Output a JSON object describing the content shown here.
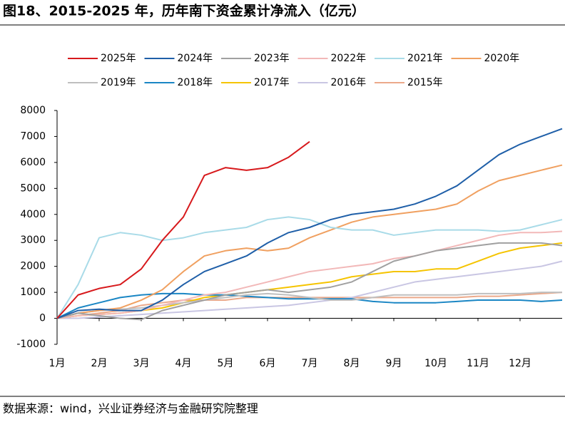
{
  "chart_data": {
    "type": "line",
    "title": "图18、2015-2025 年，历年南下资金累计净流入（亿元）",
    "source": "数据来源：wind，兴业证券经济与金融研究院整理",
    "x": [
      1,
      1.5,
      2,
      2.5,
      3,
      3.5,
      4,
      4.5,
      5,
      5.5,
      6,
      6.5,
      7,
      7.5,
      8,
      8.5,
      9,
      9.5,
      10,
      10.5,
      11,
      11.5,
      12,
      12.5,
      13
    ],
    "xlim": [
      1,
      13
    ],
    "xticks": [
      {
        "value": 1,
        "label": "1月"
      },
      {
        "value": 2,
        "label": "2月"
      },
      {
        "value": 3,
        "label": "3月"
      },
      {
        "value": 4,
        "label": "4月"
      },
      {
        "value": 5,
        "label": "5月"
      },
      {
        "value": 6,
        "label": "6月"
      },
      {
        "value": 7,
        "label": "7月"
      },
      {
        "value": 8,
        "label": "8月"
      },
      {
        "value": 9,
        "label": "9月"
      },
      {
        "value": 10,
        "label": "10月"
      },
      {
        "value": 11,
        "label": "11月"
      },
      {
        "value": 12,
        "label": "12月"
      }
    ],
    "ylim": [
      -1000,
      8000
    ],
    "yticks": [
      -1000,
      0,
      1000,
      2000,
      3000,
      4000,
      5000,
      6000,
      7000,
      8000
    ],
    "series": [
      {
        "name": "2025年",
        "color": "#d7191c",
        "values": [
          0,
          900,
          1150,
          1300,
          1900,
          3000,
          3900,
          5500,
          5800,
          5700,
          5800,
          6200,
          6800,
          null,
          null,
          null,
          null,
          null,
          null,
          null,
          null,
          null,
          null,
          null,
          null
        ]
      },
      {
        "name": "2024年",
        "color": "#1f5fa8",
        "values": [
          0,
          300,
          350,
          300,
          300,
          700,
          1300,
          1800,
          2100,
          2400,
          2900,
          3300,
          3500,
          3800,
          4000,
          4100,
          4200,
          4400,
          4700,
          5100,
          5700,
          6300,
          6700,
          7000,
          7300
        ]
      },
      {
        "name": "2023年",
        "color": "#a0a0a0",
        "values": [
          0,
          200,
          100,
          0,
          -50,
          300,
          500,
          700,
          900,
          1000,
          1100,
          1000,
          1100,
          1200,
          1400,
          1800,
          2200,
          2400,
          2600,
          2700,
          2800,
          2900,
          2900,
          2900,
          2800
        ]
      },
      {
        "name": "2022年",
        "color": "#f2b8b8",
        "values": [
          0,
          100,
          150,
          200,
          300,
          500,
          700,
          900,
          1000,
          1200,
          1400,
          1600,
          1800,
          1900,
          2000,
          2100,
          2300,
          2400,
          2600,
          2800,
          3000,
          3200,
          3300,
          3300,
          3350
        ]
      },
      {
        "name": "2021年",
        "color": "#a9dbe8",
        "values": [
          0,
          1300,
          3100,
          3300,
          3200,
          3000,
          3100,
          3300,
          3400,
          3500,
          3800,
          3900,
          3800,
          3500,
          3400,
          3400,
          3200,
          3300,
          3400,
          3400,
          3400,
          3350,
          3400,
          3600,
          3800
        ]
      },
      {
        "name": "2020年",
        "color": "#f0a060",
        "values": [
          0,
          200,
          300,
          400,
          700,
          1100,
          1800,
          2400,
          2600,
          2700,
          2600,
          2700,
          3100,
          3400,
          3700,
          3900,
          4000,
          4100,
          4200,
          4400,
          4900,
          5300,
          5500,
          5700,
          5900
        ]
      },
      {
        "name": "2019年",
        "color": "#bfbfbf",
        "values": [
          0,
          200,
          300,
          350,
          400,
          500,
          600,
          700,
          800,
          900,
          950,
          900,
          800,
          700,
          700,
          800,
          900,
          900,
          900,
          900,
          950,
          950,
          950,
          1000,
          1000
        ]
      },
      {
        "name": "2018年",
        "color": "#1a86c4",
        "values": [
          0,
          400,
          600,
          800,
          900,
          950,
          950,
          900,
          900,
          850,
          800,
          750,
          750,
          750,
          750,
          650,
          600,
          600,
          600,
          650,
          700,
          700,
          700,
          650,
          700
        ]
      },
      {
        "name": "2017年",
        "color": "#f5c400",
        "values": [
          0,
          100,
          150,
          200,
          300,
          400,
          600,
          800,
          900,
          1000,
          1100,
          1200,
          1300,
          1400,
          1600,
          1700,
          1800,
          1800,
          1900,
          1900,
          2200,
          2500,
          2700,
          2800,
          2900
        ]
      },
      {
        "name": "2016年",
        "color": "#c9c6e3",
        "values": [
          0,
          0,
          50,
          100,
          150,
          200,
          250,
          300,
          350,
          400,
          450,
          500,
          600,
          700,
          800,
          1000,
          1200,
          1400,
          1500,
          1600,
          1700,
          1800,
          1900,
          2000,
          2200
        ]
      },
      {
        "name": "2015年",
        "color": "#eba98a",
        "values": [
          0,
          100,
          200,
          300,
          500,
          600,
          700,
          700,
          700,
          800,
          800,
          800,
          800,
          800,
          800,
          800,
          800,
          800,
          800,
          800,
          850,
          850,
          900,
          950,
          1000
        ]
      }
    ]
  }
}
